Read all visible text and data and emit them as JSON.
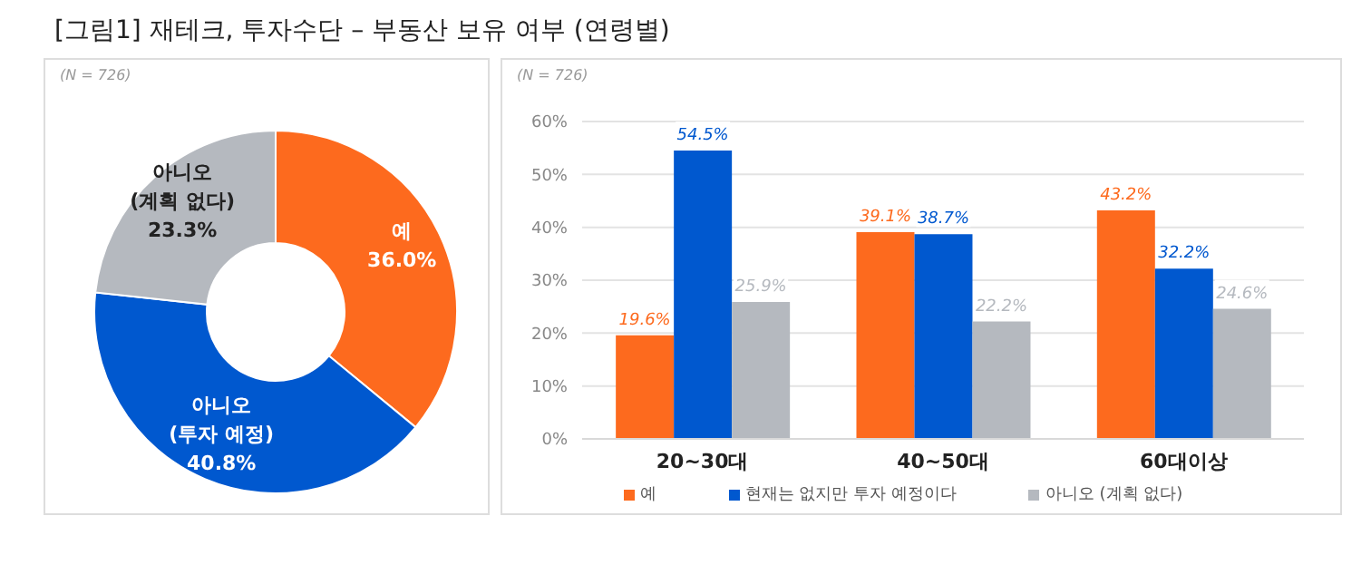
{
  "chart_data": [
    {
      "type": "donut",
      "title": "[그림1] 재테크, 투자수단 – 부동산 보유 여부 (연령별)",
      "annotations": [
        "(N = 726)"
      ],
      "categories": [
        "예",
        "아니오 (투자 예정)",
        "아니오 (계획 없다)"
      ],
      "values": [
        36.0,
        40.8,
        23.3
      ],
      "colors": [
        "#fd6a1e",
        "#0058cf",
        "#b5b9bf"
      ],
      "value_labels": [
        "36.0%",
        "40.8%",
        "23.3%"
      ],
      "legend": false
    },
    {
      "type": "bar",
      "annotations": [
        "(N = 726)"
      ],
      "categories": [
        "20~30대",
        "40~50대",
        "60대이상"
      ],
      "series": [
        {
          "name": "예",
          "color": "#fd6a1e",
          "values": [
            19.6,
            39.1,
            43.2
          ],
          "value_labels": [
            "19.6%",
            "39.1%",
            "43.2%"
          ]
        },
        {
          "name": "현재는 없지만 투자 예정이다",
          "color": "#0058cf",
          "values": [
            54.5,
            38.7,
            32.2
          ],
          "value_labels": [
            "54.5%",
            "38.7%",
            "32.2%"
          ]
        },
        {
          "name": "아니오 (계획 없다)",
          "color": "#b5b9bf",
          "values": [
            25.9,
            22.2,
            24.6
          ],
          "value_labels": [
            "25.9%",
            "22.2%",
            "24.6%"
          ]
        }
      ],
      "ylim": [
        0,
        60
      ],
      "yticks": [
        {
          "value": 0,
          "label": "0%"
        },
        {
          "value": 10,
          "label": "10%"
        },
        {
          "value": 20,
          "label": "20%"
        },
        {
          "value": 30,
          "label": "30%"
        },
        {
          "value": 40,
          "label": "40%"
        },
        {
          "value": 50,
          "label": "50%"
        },
        {
          "value": 60,
          "label": "60%"
        }
      ],
      "grid": "y",
      "legend": "bottom"
    }
  ]
}
